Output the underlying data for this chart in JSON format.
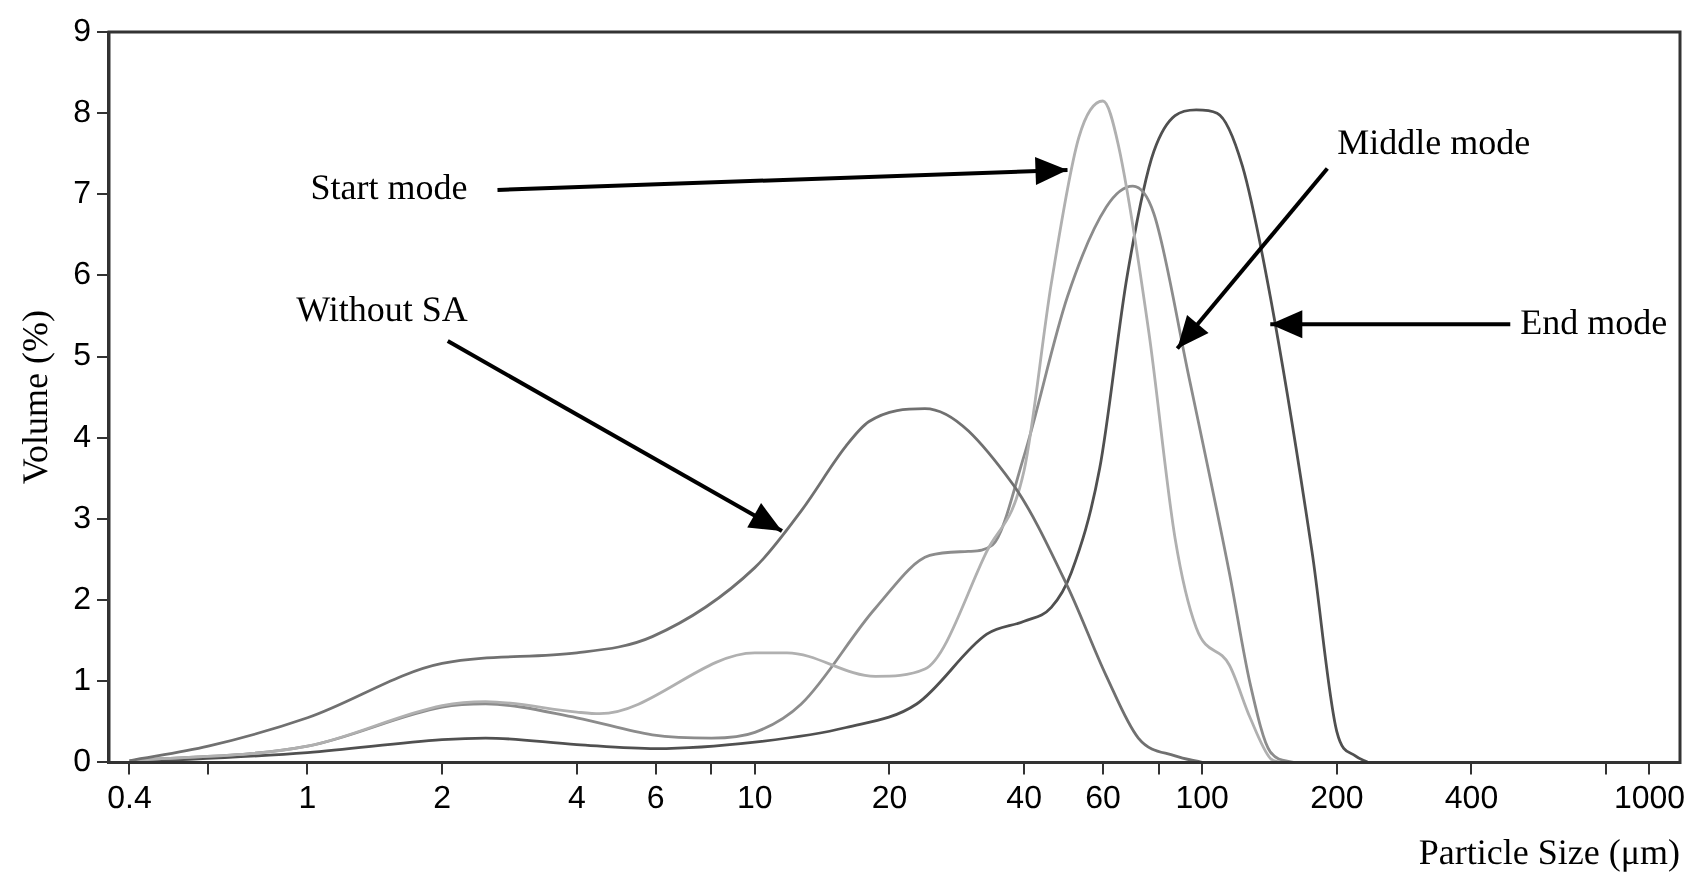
{
  "chart_data": {
    "type": "line",
    "xlabel": "Particle Size (μm)",
    "ylabel": "Volume (%)",
    "log": "x",
    "grid": false,
    "marker": "none",
    "line_style": "solid",
    "xlim": [
      0.36,
      1170
    ],
    "ylim": [
      0,
      9
    ],
    "xticks": [
      0.4,
      {
        "value": 0.6,
        "label": null
      },
      1,
      2,
      4,
      6,
      {
        "value": 8,
        "label": null
      },
      10,
      20,
      40,
      60,
      {
        "value": 80,
        "label": null
      },
      100,
      200,
      400,
      {
        "value": 800,
        "label": null
      },
      1000
    ],
    "yticks": [
      0,
      1,
      2,
      3,
      4,
      5,
      6,
      7,
      8,
      9
    ],
    "series": [
      {
        "color": "#707070",
        "x": [
          0.4,
          0.6,
          1,
          2,
          4,
          5.9,
          10,
          12.7,
          16,
          18,
          24,
          37.6,
          50,
          61,
          72,
          87,
          100
        ],
        "values": [
          0.02,
          0.2,
          0.55,
          1.22,
          1.35,
          1.55,
          2.4,
          3.1,
          3.9,
          4.2,
          4.36,
          3.44,
          2.17,
          1.07,
          0.3,
          0.08,
          0
        ]
      },
      {
        "color": "#b0b0b0",
        "x": [
          0.4,
          1,
          2,
          2.5,
          4,
          4.5,
          10,
          11.8,
          18.6,
          24,
          33,
          40,
          46,
          53,
          60,
          65,
          76,
          87,
          97,
          115,
          128,
          142,
          150
        ],
        "values": [
          0.02,
          0.2,
          0.7,
          0.75,
          0.62,
          0.6,
          1.35,
          1.35,
          1.06,
          1.15,
          2.6,
          3.6,
          5.9,
          7.7,
          8.15,
          7.6,
          5.3,
          2.76,
          1.66,
          1.2,
          0.55,
          0.05,
          0
        ]
      },
      {
        "color": "#8c8c8c",
        "x": [
          0.4,
          1,
          2,
          2.5,
          4,
          5.9,
          8,
          10,
          12.7,
          18.6,
          24.6,
          30,
          34,
          40,
          50,
          61,
          70,
          78,
          93,
          115,
          128,
          142,
          160
        ],
        "values": [
          0.02,
          0.2,
          0.68,
          0.72,
          0.55,
          0.34,
          0.3,
          0.37,
          0.72,
          1.9,
          2.55,
          2.6,
          2.68,
          3.78,
          5.74,
          6.84,
          7.1,
          6.76,
          4.8,
          2.34,
          0.97,
          0.13,
          0
        ]
      },
      {
        "color": "#505050",
        "x": [
          0.4,
          1,
          2,
          2.5,
          4,
          6,
          10,
          16,
          23,
          33,
          40,
          46,
          51,
          59,
          68,
          78,
          97,
          108,
          123,
          142,
          176,
          200,
          220,
          235
        ],
        "values": [
          0,
          0.12,
          0.28,
          0.3,
          0.22,
          0.17,
          0.25,
          0.43,
          0.72,
          1.58,
          1.74,
          1.91,
          2.34,
          3.62,
          6.0,
          7.53,
          8.04,
          8.0,
          7.35,
          5.74,
          2.6,
          0.38,
          0.08,
          0
        ]
      }
    ],
    "annotations": [
      {
        "text": "Without SA",
        "x": 11.5,
        "y": 2.85
      },
      {
        "text": "Start mode",
        "x": 50,
        "y": 7.3
      },
      {
        "text": "Middle mode",
        "x": 88,
        "y": 5.1
      },
      {
        "text": "End mode",
        "x": 142,
        "y": 5.4
      }
    ]
  }
}
